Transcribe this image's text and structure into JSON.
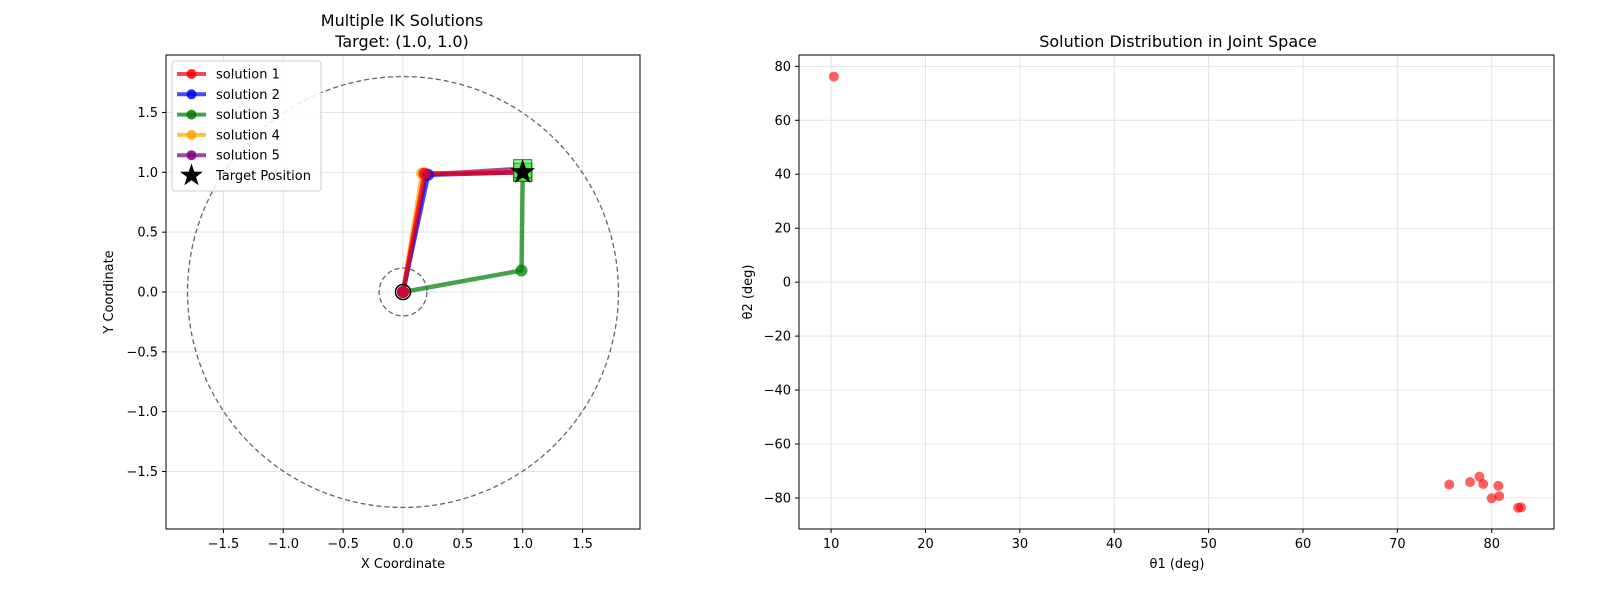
{
  "chart_data": [
    {
      "type": "line",
      "title_line1": "Multiple IK Solutions",
      "title_line2": "Target: (1.0, 1.0)",
      "xlabel": "X Coordinate",
      "ylabel": "Y Coordinate",
      "xlim": [
        -1.98,
        1.98
      ],
      "ylim": [
        -1.98,
        1.98
      ],
      "xticks": [
        -1.5,
        -1.0,
        -0.5,
        0.0,
        0.5,
        1.0,
        1.5
      ],
      "xtick_labels": [
        "−1.5",
        "−1.0",
        "−0.5",
        "0.0",
        "0.5",
        "1.0",
        "1.5"
      ],
      "yticks": [
        -1.5,
        -1.0,
        -0.5,
        0.0,
        0.5,
        1.0,
        1.5
      ],
      "ytick_labels": [
        "−1.5",
        "−1.0",
        "−0.5",
        "0.0",
        "0.5",
        "1.0",
        "1.5"
      ],
      "grid": true,
      "legend_position": "upper-left",
      "workspace_circles": [
        {
          "r": 1.8
        },
        {
          "r": 0.2
        }
      ],
      "series": [
        {
          "name": "solution 1",
          "color": "#ff0000",
          "x": [
            0,
            0.18,
            1.0
          ],
          "y": [
            0,
            0.99,
            1.0
          ]
        },
        {
          "name": "solution 2",
          "color": "#0000ff",
          "x": [
            0,
            0.21,
            1.0
          ],
          "y": [
            0,
            0.98,
            1.0
          ]
        },
        {
          "name": "solution 3",
          "color": "#008000",
          "x": [
            0,
            0.99,
            1.0
          ],
          "y": [
            0,
            0.18,
            1.0
          ]
        },
        {
          "name": "solution 4",
          "color": "#ffa500",
          "x": [
            0,
            0.16,
            1.0
          ],
          "y": [
            0,
            0.99,
            1.0
          ]
        },
        {
          "name": "solution 5",
          "color": "#800080",
          "x": [
            0,
            0.19,
            1.0
          ],
          "y": [
            0,
            0.98,
            1.03
          ]
        }
      ],
      "target": {
        "name": "Target Position",
        "x": 1.0,
        "y": 1.0
      }
    },
    {
      "type": "scatter",
      "title": "Solution Distribution in Joint Space",
      "xlabel": "θ1 (deg)",
      "ylabel": "θ2 (deg)",
      "xlim": [
        6.6,
        86.6
      ],
      "ylim": [
        -91.5,
        84.2
      ],
      "xticks": [
        10,
        20,
        30,
        40,
        50,
        60,
        70,
        80
      ],
      "xtick_labels": [
        "10",
        "20",
        "30",
        "40",
        "50",
        "60",
        "70",
        "80"
      ],
      "yticks": [
        -80,
        -60,
        -40,
        -20,
        0,
        20,
        40,
        60,
        80
      ],
      "ytick_labels": [
        "−80",
        "−60",
        "−40",
        "−20",
        "0",
        "20",
        "40",
        "60",
        "80"
      ],
      "grid": true,
      "color": "#ff0000",
      "points": [
        [
          10.3,
          76.2
        ],
        [
          75.5,
          -75.0
        ],
        [
          77.7,
          -74.1
        ],
        [
          78.7,
          -72.1
        ],
        [
          79.1,
          -74.8
        ],
        [
          80.0,
          -80.1
        ],
        [
          80.7,
          -75.5
        ],
        [
          80.8,
          -79.3
        ],
        [
          82.8,
          -83.6
        ],
        [
          83.1,
          -83.5
        ]
      ]
    }
  ]
}
